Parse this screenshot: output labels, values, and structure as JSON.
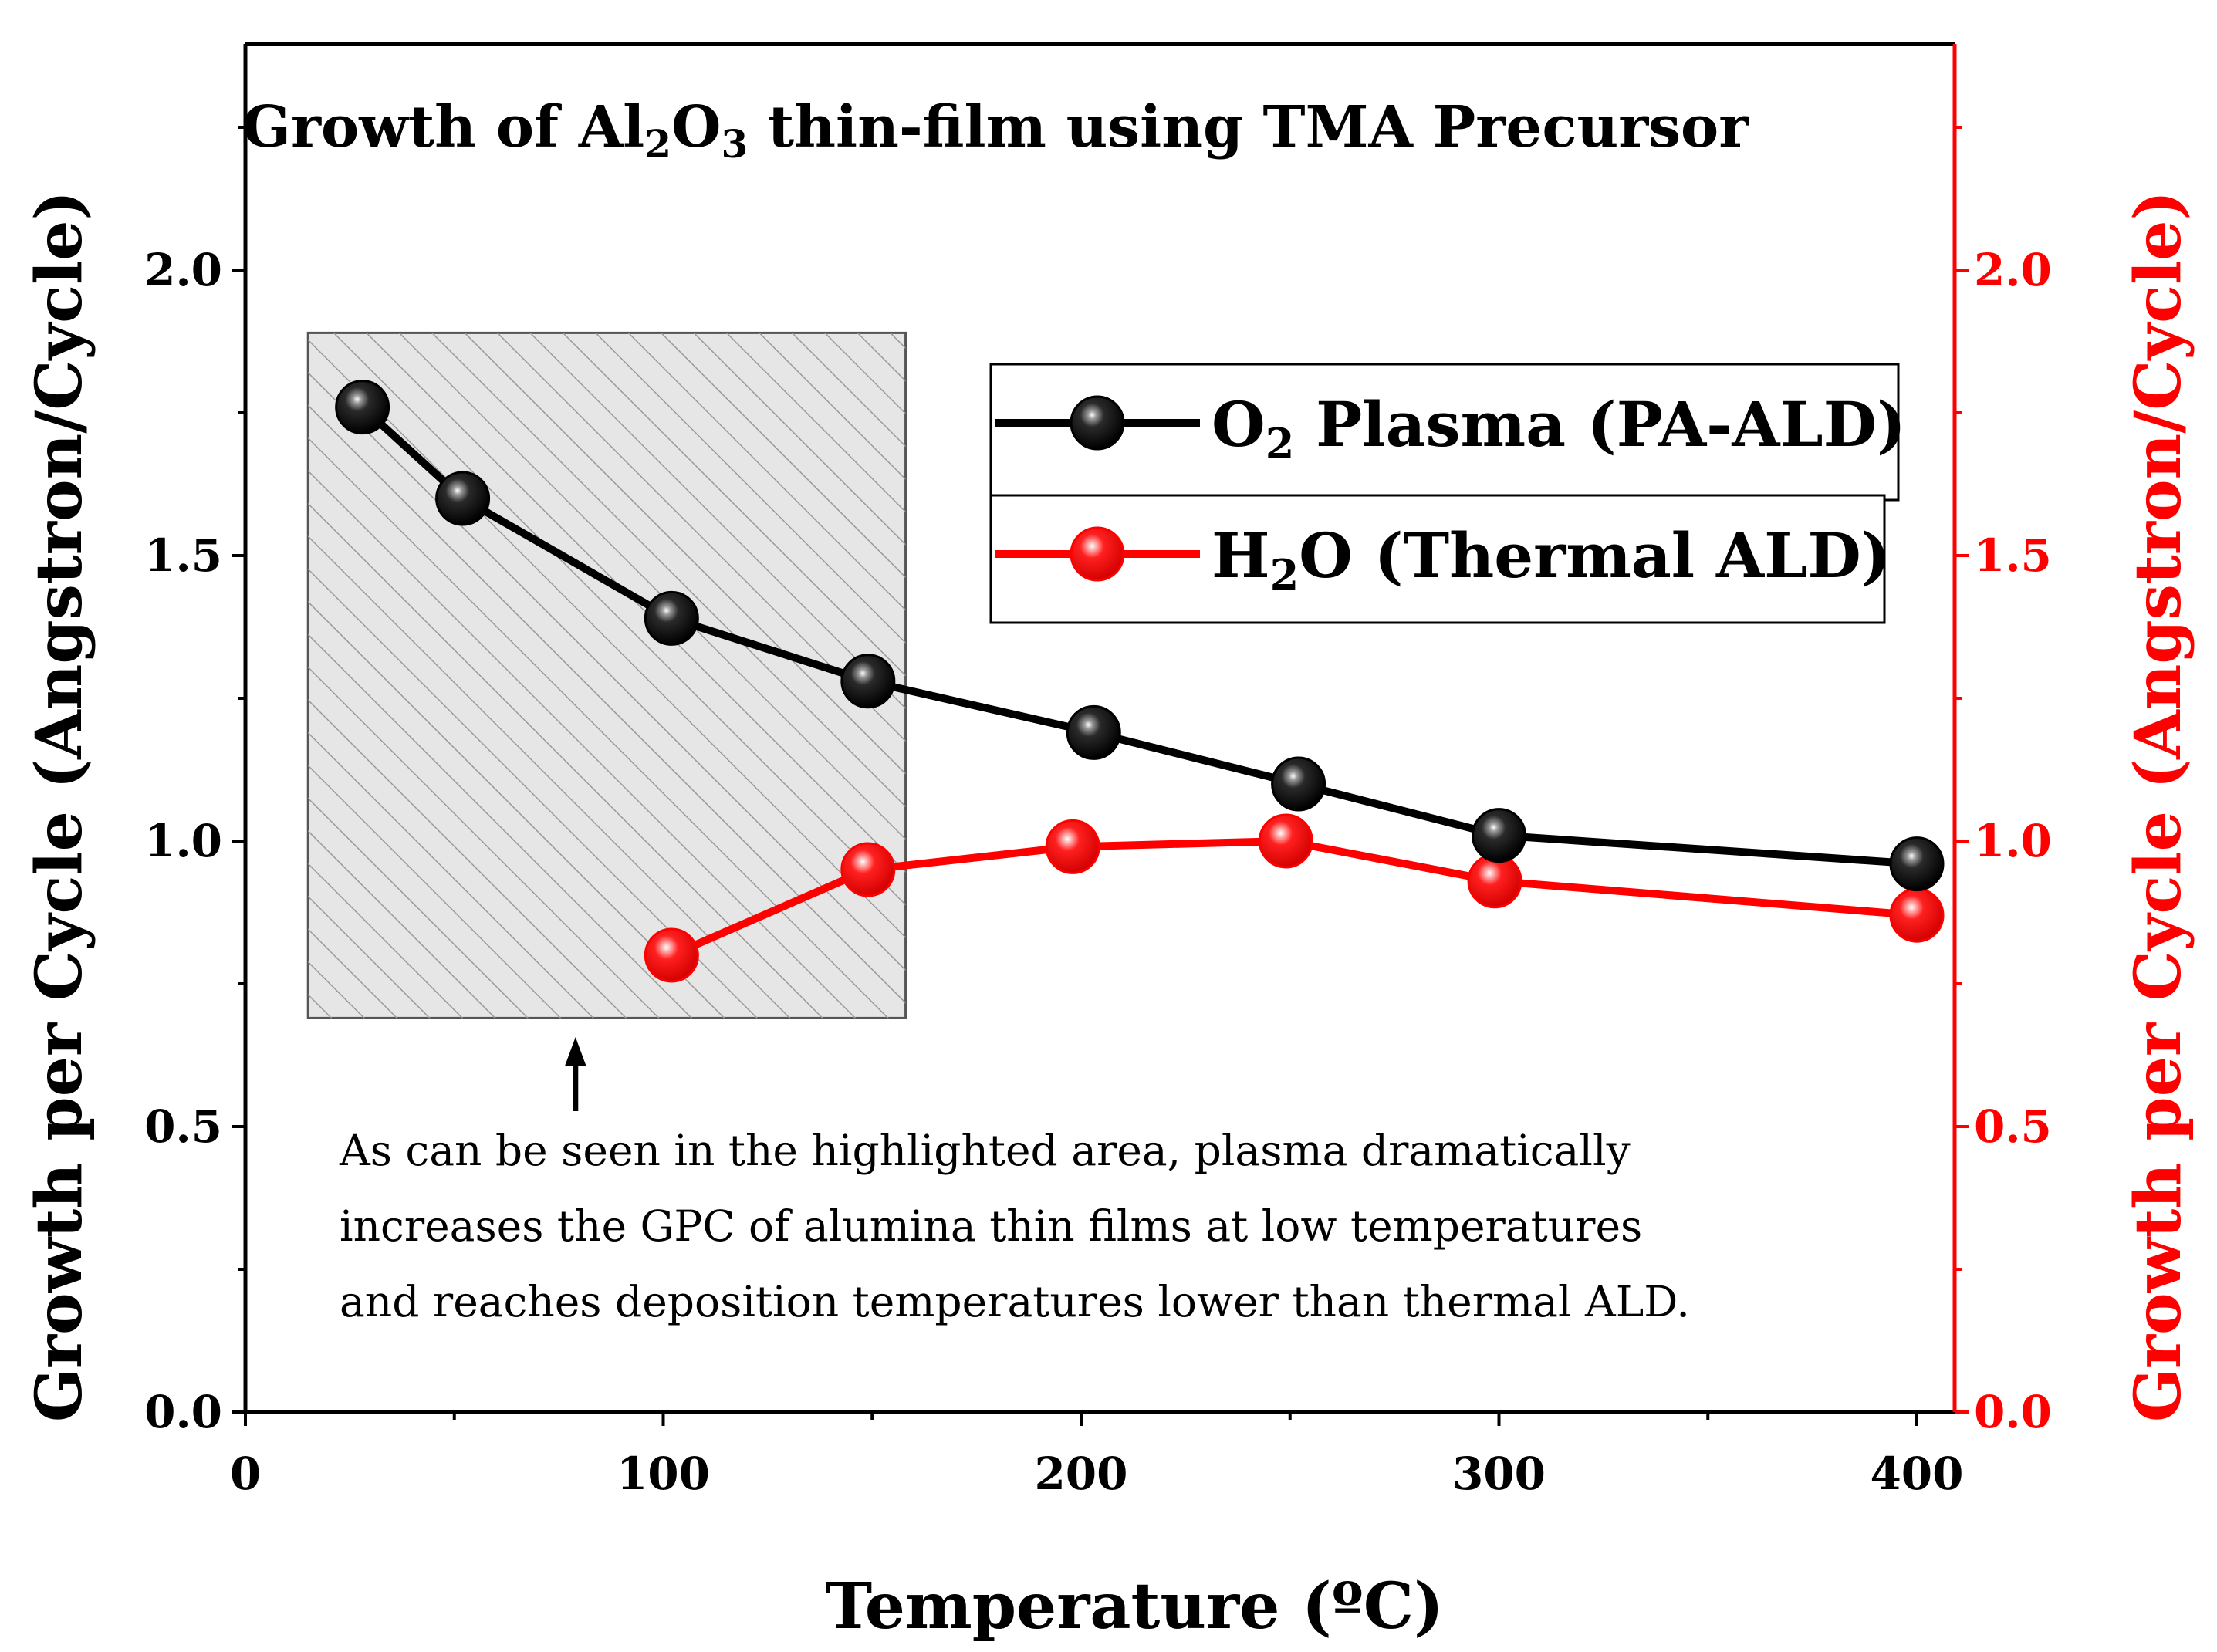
{
  "chart_data": {
    "type": "line",
    "title": {
      "prefix": "Growth of Al",
      "sub1": "2",
      "mid": "O",
      "sub2": "3",
      "suffix": " thin-film using TMA Precursor"
    },
    "xlabel": "Temperature (ºC)",
    "ylabel_left": "Growth per Cycle (Angstron/Cycle)",
    "ylabel_right": "Growth per Cycle (Angstron/Cycle)",
    "xlim": [
      0,
      410
    ],
    "ylim": [
      0,
      2.4
    ],
    "x_ticks": [
      0,
      100,
      200,
      300,
      400
    ],
    "x_tick_labels": [
      "0",
      "100",
      "200",
      "300",
      "400"
    ],
    "y_ticks": [
      0.0,
      0.5,
      1.0,
      1.5,
      2.0
    ],
    "y_tick_labels": [
      "0.0",
      "0.5",
      "1.0",
      "1.5",
      "2.0"
    ],
    "series": [
      {
        "name_main": "O",
        "name_sub": "2",
        "name_rest": " Plasma (PA-ALD)",
        "color": "#000000",
        "points": [
          {
            "x": 28,
            "y": 1.76
          },
          {
            "x": 52,
            "y": 1.6
          },
          {
            "x": 102,
            "y": 1.39
          },
          {
            "x": 149,
            "y": 1.28
          },
          {
            "x": 203,
            "y": 1.19
          },
          {
            "x": 252,
            "y": 1.1
          },
          {
            "x": 300,
            "y": 1.01
          },
          {
            "x": 400,
            "y": 0.96
          }
        ]
      },
      {
        "name_main": "H",
        "name_sub": "2",
        "name_rest": "O (Thermal ALD)",
        "color": "#ff0000",
        "points": [
          {
            "x": 102,
            "y": 0.8
          },
          {
            "x": 149,
            "y": 0.95
          },
          {
            "x": 198,
            "y": 0.99
          },
          {
            "x": 249,
            "y": 1.0
          },
          {
            "x": 299,
            "y": 0.93
          },
          {
            "x": 400,
            "y": 0.87
          }
        ]
      }
    ],
    "highlight_region": {
      "x_start": 15,
      "x_end": 158,
      "y_start": 0.69,
      "y_end": 1.89
    },
    "arrow_x": 79,
    "annotation_lines": [
      "As can be seen in the highlighted area, plasma dramatically",
      "increases the GPC of alumina thin films at low temperatures",
      "and reaches deposition temperatures lower than thermal ALD."
    ],
    "right_axis_color": "#ff0000"
  }
}
